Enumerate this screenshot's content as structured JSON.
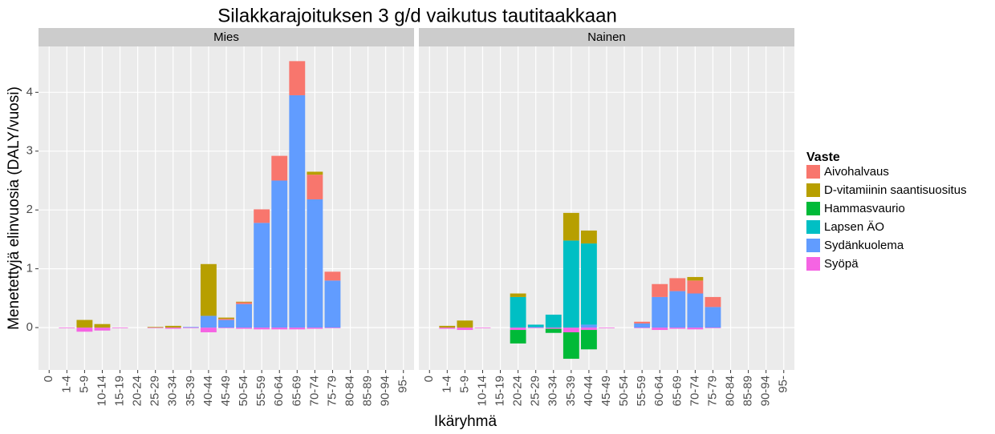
{
  "chart_data": {
    "type": "bar",
    "title": "Silakkarajoituksen 3 g/d vaikutus tautitaakkaan",
    "x_label": "Ikäryhmä",
    "y_label": "Menetettyjä elinvuosia (DALY/vuosi)",
    "legend_title": "Vaste",
    "ylim": [
      -0.72,
      4.78
    ],
    "yticks": [
      0,
      1,
      2,
      3,
      4
    ],
    "grid": true,
    "legend": "right",
    "categories": [
      "0",
      "1-4",
      "5-9",
      "10-14",
      "15-19",
      "20-24",
      "25-29",
      "30-34",
      "35-39",
      "40-44",
      "45-49",
      "50-54",
      "55-59",
      "60-64",
      "65-69",
      "70-74",
      "75-79",
      "80-84",
      "85-89",
      "90-94",
      "95-"
    ],
    "facets": [
      {
        "title": "Mies",
        "series": [
          {
            "name": "Aivohalvaus",
            "color": "#F8766D",
            "values": [
              0,
              0,
              0,
              0,
              0,
              0,
              0,
              0,
              0,
              0,
              0.02,
              0.03,
              0.23,
              0.42,
              0.58,
              0.42,
              0.15,
              0,
              0,
              0,
              0
            ]
          },
          {
            "name": "D-vitamiinin saantisuositus",
            "color": "#B79F00",
            "values": [
              0,
              0,
              0.13,
              0.06,
              0,
              0,
              0.01,
              0.03,
              0,
              0.88,
              0.02,
              0.01,
              0,
              0,
              0,
              0.05,
              0,
              0,
              0,
              0,
              0
            ]
          },
          {
            "name": "Hammasvaurio",
            "color": "#00BA38",
            "values": [
              0,
              0,
              0,
              0,
              0,
              0,
              0,
              0,
              0,
              0,
              0,
              0,
              0,
              0,
              0,
              0,
              0,
              0,
              0,
              0,
              0
            ]
          },
          {
            "name": "Lapsen ÄO",
            "color": "#00BFC4",
            "values": [
              0,
              0,
              0,
              0,
              0,
              0,
              0,
              0,
              0,
              0,
              0,
              0,
              0,
              0,
              0,
              0,
              0,
              0,
              0,
              0,
              0
            ]
          },
          {
            "name": "Sydänkuolema",
            "color": "#619CFF",
            "values": [
              0,
              0,
              0,
              0,
              0,
              0,
              0,
              0,
              0.01,
              0.2,
              0.13,
              0.4,
              1.78,
              2.5,
              3.95,
              2.18,
              0.8,
              0,
              0,
              0,
              0
            ]
          },
          {
            "name": "Syöpä",
            "color": "#F564E3",
            "values": [
              0,
              -0.01,
              -0.07,
              -0.05,
              -0.01,
              0,
              -0.01,
              -0.02,
              -0.01,
              -0.08,
              -0.01,
              -0.02,
              -0.03,
              -0.03,
              -0.03,
              -0.02,
              -0.01,
              0,
              0,
              0,
              0
            ]
          }
        ]
      },
      {
        "title": "Nainen",
        "series": [
          {
            "name": "Aivohalvaus",
            "color": "#F8766D",
            "values": [
              0,
              0,
              0,
              0,
              0,
              0,
              0,
              0,
              0,
              0,
              0,
              0,
              0.03,
              0.22,
              0.22,
              0.22,
              0.17,
              0,
              0,
              0,
              0
            ]
          },
          {
            "name": "D-vitamiinin saantisuositus",
            "color": "#B79F00",
            "values": [
              0,
              0.03,
              0.12,
              0,
              0,
              0.06,
              0,
              0,
              0.47,
              0.22,
              0,
              0,
              0,
              0,
              0,
              0.06,
              0,
              0,
              0,
              0,
              0
            ]
          },
          {
            "name": "Hammasvaurio",
            "color": "#00BA38",
            "values": [
              0,
              0,
              0,
              0,
              0,
              -0.23,
              0,
              -0.07,
              -0.45,
              -0.33,
              0,
              0,
              0,
              0,
              0,
              0,
              0,
              0,
              0,
              0,
              0
            ]
          },
          {
            "name": "Lapsen ÄO",
            "color": "#00BFC4",
            "values": [
              0,
              0,
              0,
              0,
              0,
              0.52,
              0.04,
              0.22,
              1.48,
              1.38,
              0,
              0,
              0,
              0,
              0,
              0,
              0,
              0,
              0,
              0,
              0
            ]
          },
          {
            "name": "Sydänkuolema",
            "color": "#619CFF",
            "values": [
              0,
              0,
              0,
              0,
              0,
              0,
              0.01,
              0,
              0,
              0.05,
              0,
              0,
              0.07,
              0.52,
              0.62,
              0.58,
              0.35,
              0,
              0,
              0,
              0
            ]
          },
          {
            "name": "Syöpä",
            "color": "#F564E3",
            "values": [
              0,
              -0.02,
              -0.04,
              -0.01,
              0,
              -0.04,
              -0.01,
              -0.02,
              -0.08,
              -0.04,
              -0.01,
              0,
              -0.01,
              -0.04,
              -0.02,
              -0.03,
              -0.01,
              0,
              0,
              0,
              0
            ]
          }
        ]
      }
    ]
  }
}
